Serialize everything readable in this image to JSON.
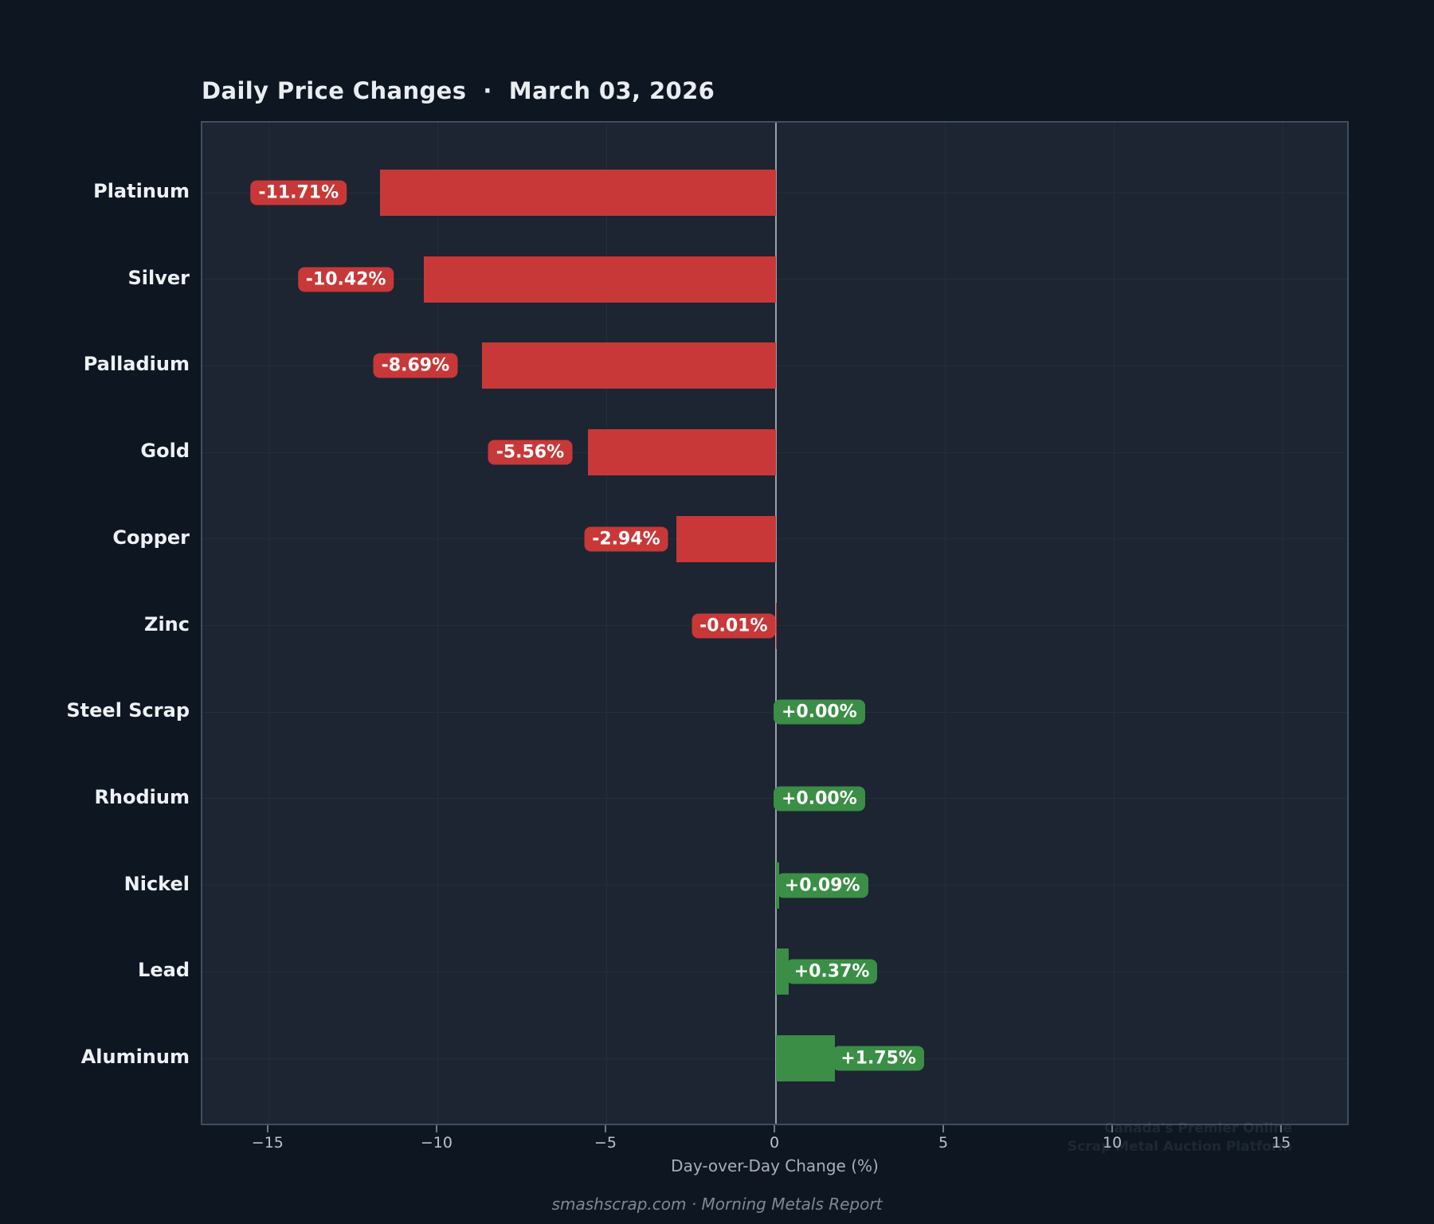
{
  "title": "Daily Price Changes  ·  March 03, 2026",
  "chart_data": {
    "type": "bar",
    "orientation": "horizontal",
    "title": "Daily Price Changes · March 03, 2026",
    "categories": [
      "Platinum",
      "Silver",
      "Palladium",
      "Gold",
      "Copper",
      "Zinc",
      "Steel Scrap",
      "Rhodium",
      "Nickel",
      "Lead",
      "Aluminum"
    ],
    "values": [
      -11.71,
      -10.42,
      -8.69,
      -5.56,
      -2.94,
      -0.01,
      0.0,
      0.0,
      0.09,
      0.37,
      1.75
    ],
    "bar_labels": [
      "-11.71%",
      "-10.42%",
      "-8.69%",
      "-5.56%",
      "-2.94%",
      "-0.01%",
      "+0.00%",
      "+0.00%",
      "+0.09%",
      "+0.37%",
      "+1.75%"
    ],
    "xlabel": "Day-over-Day Change (%)",
    "xlim": [
      -17,
      17
    ],
    "xticks": [
      -15,
      -10,
      -5,
      0,
      5,
      10,
      15
    ],
    "xtick_labels": [
      "−15",
      "−10",
      "−5",
      "0",
      "5",
      "10",
      "15"
    ],
    "grid": true,
    "legend": "none",
    "colors": {
      "negative": "#c83838",
      "positive": "#3a8e45",
      "background": "#0e1621",
      "plot_background": "#1c2531",
      "zero_line": "#99a2ab",
      "gridline": "#242f3c"
    }
  },
  "xlabel": "Day-over-Day Change (%)",
  "footer": "smashscrap.com  ·  Morning Metals Report",
  "watermark": {
    "line1": "Canada's Premier Online",
    "line2": "Scrap Metal Auction Platform"
  }
}
